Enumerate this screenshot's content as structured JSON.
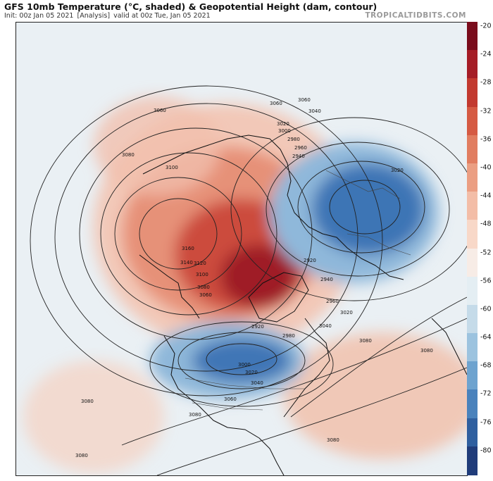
{
  "header": {
    "title": "GFS 10mb Temperature (°C, shaded) & Geopotential Height (dam, contour)",
    "init": "Init: 00z Jan 05 2021",
    "run_type": "[Analysis]",
    "valid": "valid at 00z Tue, Jan 05 2021",
    "brand": "TROPICALTIDBITS.COM"
  },
  "colorbar": {
    "labels": [
      "-20",
      "-24",
      "-28",
      "-32",
      "-36",
      "-40",
      "-44",
      "-48",
      "-52",
      "-56",
      "-60",
      "-64",
      "-68",
      "-72",
      "-76",
      "-80"
    ],
    "colors": [
      "#7a0c1c",
      "#a51d26",
      "#c2392f",
      "#d55a43",
      "#e17d60",
      "#eb9e82",
      "#f3bda7",
      "#f8d8c8",
      "#f7ece6",
      "#e4eef3",
      "#c5dbe9",
      "#9cc3df",
      "#6ea3cf",
      "#4a82bc",
      "#2f5f9f",
      "#203c7a"
    ]
  },
  "map": {
    "contour_labels": [
      {
        "text": "3060"
      },
      {
        "text": "3080"
      },
      {
        "text": "3100"
      },
      {
        "text": "3060"
      },
      {
        "text": "3060"
      },
      {
        "text": "3040"
      },
      {
        "text": "3020"
      },
      {
        "text": "3000"
      },
      {
        "text": "2980"
      },
      {
        "text": "2960"
      },
      {
        "text": "2940"
      },
      {
        "text": "3020"
      },
      {
        "text": "3160"
      },
      {
        "text": "3140"
      },
      {
        "text": "3120"
      },
      {
        "text": "3100"
      },
      {
        "text": "3080"
      },
      {
        "text": "3060"
      },
      {
        "text": "2920"
      },
      {
        "text": "2940"
      },
      {
        "text": "2960"
      },
      {
        "text": "3020"
      },
      {
        "text": "3040"
      },
      {
        "text": "2920"
      },
      {
        "text": "2980"
      },
      {
        "text": "3080"
      },
      {
        "text": "3080"
      },
      {
        "text": "3000"
      },
      {
        "text": "3020"
      },
      {
        "text": "3040"
      },
      {
        "text": "3060"
      },
      {
        "text": "3080"
      },
      {
        "text": "3080"
      },
      {
        "text": "3080"
      },
      {
        "text": "3080"
      }
    ]
  }
}
